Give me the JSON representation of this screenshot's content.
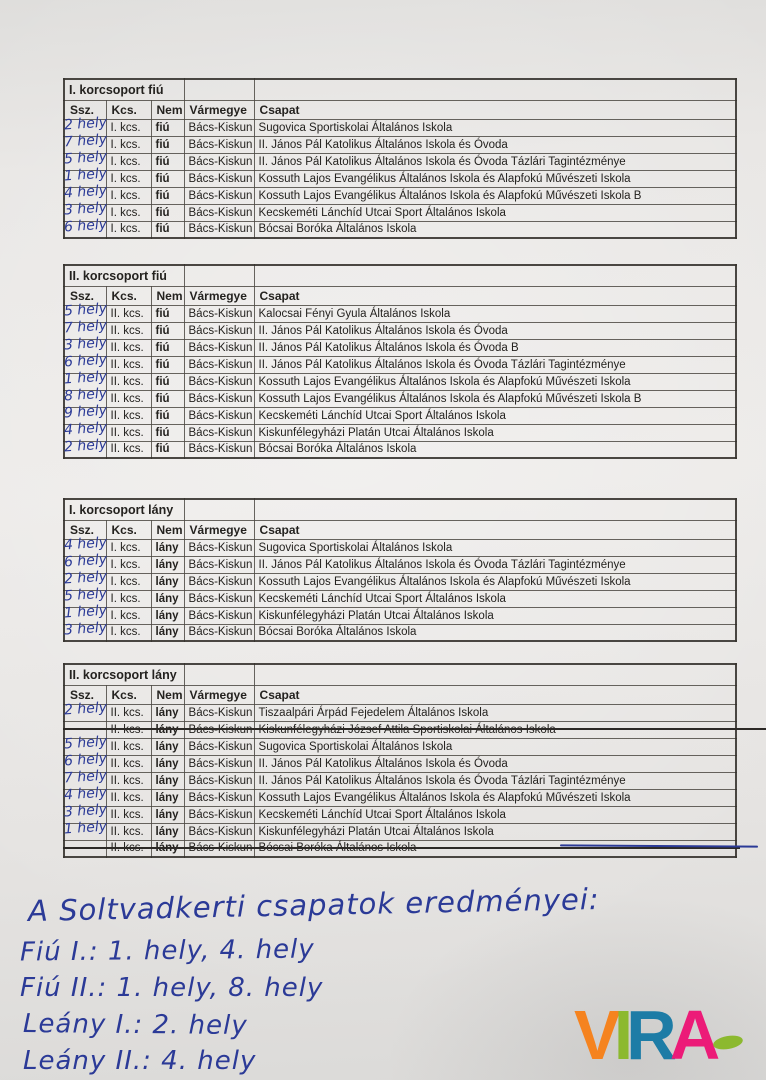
{
  "colors": {
    "ink": "#2b3a97",
    "strike": "#2c2926",
    "logo_v": "#f5831f",
    "logo_i": "#8cb92f",
    "logo_r": "#1d7ca6",
    "logo_a": "#ec1b78",
    "logo_ellipse": "#8cb92f"
  },
  "tables": [
    {
      "title": "I. korcsoport fiú",
      "headers": [
        "Ssz.",
        "Kcs.",
        "Nem",
        "Vármegye",
        "Csapat"
      ],
      "rows": [
        {
          "hand": "2 hely",
          "kcs": "I. kcs.",
          "nem": "fiú",
          "varmegye": "Bács-Kiskun",
          "csapat": "Sugovica Sportiskolai Általános Iskola",
          "struck": false
        },
        {
          "hand": "7 hely",
          "kcs": "I. kcs.",
          "nem": "fiú",
          "varmegye": "Bács-Kiskun",
          "csapat": "II. János Pál Katolikus Általános Iskola és Óvoda",
          "struck": false
        },
        {
          "hand": "5 hely",
          "kcs": "I. kcs.",
          "nem": "fiú",
          "varmegye": "Bács-Kiskun",
          "csapat": "II. János Pál Katolikus Általános Iskola és Óvoda Tázlári Tagintézménye",
          "struck": false
        },
        {
          "hand": "1 hely",
          "kcs": "I. kcs.",
          "nem": "fiú",
          "varmegye": "Bács-Kiskun",
          "csapat": "Kossuth Lajos Evangélikus Általános Iskola és Alapfokú Művészeti Iskola",
          "struck": false
        },
        {
          "hand": "4 hely",
          "kcs": "I. kcs.",
          "nem": "fiú",
          "varmegye": "Bács-Kiskun",
          "csapat": "Kossuth Lajos Evangélikus Általános Iskola és Alapfokú Művészeti Iskola B",
          "struck": false
        },
        {
          "hand": "3 hely",
          "kcs": "I. kcs.",
          "nem": "fiú",
          "varmegye": "Bács-Kiskun",
          "csapat": "Kecskeméti Lánchíd Utcai Sport Általános Iskola",
          "struck": false
        },
        {
          "hand": "6 hely",
          "kcs": "I. kcs.",
          "nem": "fiú",
          "varmegye": "Bács-Kiskun",
          "csapat": "Bócsai Boróka Általános Iskola",
          "struck": false
        }
      ]
    },
    {
      "title": "II. korcsoport fiú",
      "headers": [
        "Ssz.",
        "Kcs.",
        "Nem",
        "Vármegye",
        "Csapat"
      ],
      "rows": [
        {
          "hand": "5 hely",
          "kcs": "II. kcs.",
          "nem": "fiú",
          "varmegye": "Bács-Kiskun",
          "csapat": "Kalocsai Fényi Gyula Általános Iskola",
          "struck": false
        },
        {
          "hand": "7 hely",
          "kcs": "II. kcs.",
          "nem": "fiú",
          "varmegye": "Bács-Kiskun",
          "csapat": "II. János Pál Katolikus Általános Iskola és Óvoda",
          "struck": false
        },
        {
          "hand": "3 hely",
          "kcs": "II. kcs.",
          "nem": "fiú",
          "varmegye": "Bács-Kiskun",
          "csapat": "II. János Pál Katolikus Általános Iskola és Óvoda B",
          "struck": false
        },
        {
          "hand": "6 hely",
          "kcs": "II. kcs.",
          "nem": "fiú",
          "varmegye": "Bács-Kiskun",
          "csapat": "II. János Pál Katolikus Általános Iskola és Óvoda Tázlári Tagintézménye",
          "struck": false
        },
        {
          "hand": "1 hely",
          "kcs": "II. kcs.",
          "nem": "fiú",
          "varmegye": "Bács-Kiskun",
          "csapat": "Kossuth Lajos Evangélikus Általános Iskola és Alapfokú Művészeti Iskola",
          "struck": false
        },
        {
          "hand": "8 hely",
          "kcs": "II. kcs.",
          "nem": "fiú",
          "varmegye": "Bács-Kiskun",
          "csapat": "Kossuth Lajos Evangélikus Általános Iskola és Alapfokú Művészeti Iskola B",
          "struck": false
        },
        {
          "hand": "9 hely",
          "kcs": "II. kcs.",
          "nem": "fiú",
          "varmegye": "Bács-Kiskun",
          "csapat": "Kecskeméti Lánchíd Utcai Sport Általános Iskola",
          "struck": false
        },
        {
          "hand": "4 hely",
          "kcs": "II. kcs.",
          "nem": "fiú",
          "varmegye": "Bács-Kiskun",
          "csapat": "Kiskunfélegyházi Platán Utcai Általános Iskola",
          "struck": false
        },
        {
          "hand": "2 hely",
          "kcs": "II. kcs.",
          "nem": "fiú",
          "varmegye": "Bács-Kiskun",
          "csapat": "Bócsai Boróka Általános Iskola",
          "struck": false
        }
      ]
    },
    {
      "title": "I. korcsoport lány",
      "headers": [
        "Ssz.",
        "Kcs.",
        "Nem",
        "Vármegye",
        "Csapat"
      ],
      "rows": [
        {
          "hand": "4 hely",
          "kcs": "I. kcs.",
          "nem": "lány",
          "varmegye": "Bács-Kiskun",
          "csapat": "Sugovica Sportiskolai Általános Iskola",
          "struck": false
        },
        {
          "hand": "6 hely",
          "kcs": "I. kcs.",
          "nem": "lány",
          "varmegye": "Bács-Kiskun",
          "csapat": "II. János Pál Katolikus Általános Iskola és Óvoda Tázlári Tagintézménye",
          "struck": false
        },
        {
          "hand": "2 hely",
          "kcs": "I. kcs.",
          "nem": "lány",
          "varmegye": "Bács-Kiskun",
          "csapat": "Kossuth Lajos Evangélikus Általános Iskola és Alapfokú Művészeti Iskola",
          "struck": false
        },
        {
          "hand": "5 hely",
          "kcs": "I. kcs.",
          "nem": "lány",
          "varmegye": "Bács-Kiskun",
          "csapat": "Kecskeméti Lánchíd Utcai Sport Általános Iskola",
          "struck": false
        },
        {
          "hand": "1 hely",
          "kcs": "I. kcs.",
          "nem": "lány",
          "varmegye": "Bács-Kiskun",
          "csapat": "Kiskunfélegyházi Platán Utcai Általános Iskola",
          "struck": false
        },
        {
          "hand": "3 hely",
          "kcs": "I. kcs.",
          "nem": "lány",
          "varmegye": "Bács-Kiskun",
          "csapat": "Bócsai Boróka Általános Iskola",
          "struck": false
        }
      ]
    },
    {
      "title": "II. korcsoport lány",
      "headers": [
        "Ssz.",
        "Kcs.",
        "Nem",
        "Vármegye",
        "Csapat"
      ],
      "rows": [
        {
          "hand": "2 hely",
          "kcs": "II. kcs.",
          "nem": "lány",
          "varmegye": "Bács-Kiskun",
          "csapat": "Tiszaalpári Árpád Fejedelem Általános Iskola",
          "struck": false
        },
        {
          "hand": "—",
          "kcs": "II. kcs.",
          "nem": "lány",
          "varmegye": "Bács-Kiskun",
          "csapat": "Kiskunfélegyházi József Attila Sportiskolai Általános Iskola",
          "struck": true,
          "tail": "gray"
        },
        {
          "hand": "5 hely",
          "kcs": "II. kcs.",
          "nem": "lány",
          "varmegye": "Bács-Kiskun",
          "csapat": "Sugovica Sportiskolai Általános Iskola",
          "struck": false
        },
        {
          "hand": "6 hely",
          "kcs": "II. kcs.",
          "nem": "lány",
          "varmegye": "Bács-Kiskun",
          "csapat": "II. János Pál Katolikus Általános Iskola és Óvoda",
          "struck": false
        },
        {
          "hand": "7 hely",
          "kcs": "II. kcs.",
          "nem": "lány",
          "varmegye": "Bács-Kiskun",
          "csapat": "II. János Pál Katolikus Általános Iskola és Óvoda Tázlári Tagintézménye",
          "struck": false
        },
        {
          "hand": "4 hely",
          "kcs": "II. kcs.",
          "nem": "lány",
          "varmegye": "Bács-Kiskun",
          "csapat": "Kossuth Lajos Evangélikus Általános Iskola és Alapfokú Művészeti Iskola",
          "struck": false
        },
        {
          "hand": "3 hely",
          "kcs": "II. kcs.",
          "nem": "lány",
          "varmegye": "Bács-Kiskun",
          "csapat": "Kecskeméti Lánchíd Utcai Sport Általános Iskola",
          "struck": false
        },
        {
          "hand": "1 hely",
          "kcs": "II. kcs.",
          "nem": "lány",
          "varmegye": "Bács-Kiskun",
          "csapat": "Kiskunfélegyházi Platán Utcai Általános Iskola",
          "struck": false
        },
        {
          "hand": "—",
          "kcs": "II. kcs.",
          "nem": "lány",
          "varmegye": "Bács-Kiskun",
          "csapat": "Bócsai Boróka Általános Iskola",
          "struck": true,
          "tail": "pen"
        }
      ]
    }
  ],
  "notes": {
    "lines": [
      "A Soltvadkerti csapatok eredményei:",
      "Fiú I.: 1. hely, 4. hely",
      "Fiú II.: 1. hely, 8. hely",
      "Leány I.: 2. hely",
      "Leány II.: 4. hely"
    ]
  },
  "logo": {
    "letters": [
      "V",
      "I",
      "R",
      "A"
    ]
  }
}
